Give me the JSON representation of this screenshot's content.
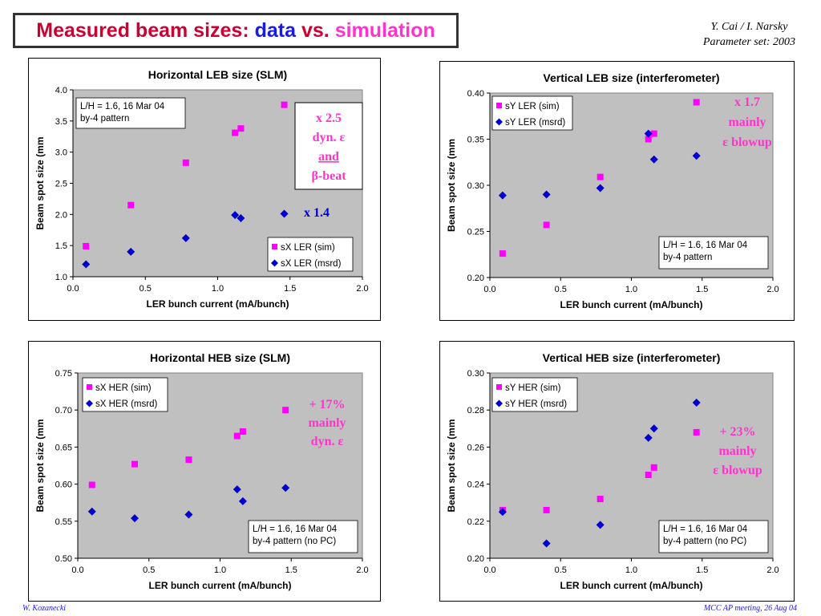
{
  "title": {
    "part1": "Measured beam sizes:",
    "part2": "data",
    "part3": "vs.",
    "part4": "simulation"
  },
  "authors": {
    "line1": "Y. Cai / I. Narsky",
    "line2": "Parameter set: 2003"
  },
  "footer": {
    "left": "W. Kozanecki",
    "right": "MCC AP meeting, 26 Aug 04"
  },
  "colors": {
    "sim": "#ff00ff",
    "msrd": "#0000cc",
    "plot_bg": "#c0c0c0",
    "annotation_pink": "#ff33cc",
    "annotation_blue": "#0000cc"
  },
  "chart_data": [
    {
      "type": "scatter",
      "title": "Horizontal LEB size (SLM)",
      "xlabel": "LER bunch current (mA/bunch)",
      "ylabel": "Beam spot size (mm",
      "xlim": [
        0,
        2
      ],
      "ylim": [
        1,
        4
      ],
      "xticks": [
        "0.0",
        "0.5",
        "1.0",
        "1.5",
        "2.0"
      ],
      "yticks": [
        "1.0",
        "1.5",
        "2.0",
        "2.5",
        "3.0",
        "3.5",
        "4.0"
      ],
      "series": [
        {
          "name": "sX LER (sim)",
          "marker": "square",
          "points": [
            [
              0.09,
              1.49
            ],
            [
              0.4,
              2.15
            ],
            [
              0.78,
              2.83
            ],
            [
              1.12,
              3.31
            ],
            [
              1.16,
              3.38
            ],
            [
              1.46,
              3.76
            ]
          ]
        },
        {
          "name": "sX LER (msrd)",
          "marker": "diamond",
          "points": [
            [
              0.09,
              1.2
            ],
            [
              0.4,
              1.4
            ],
            [
              0.78,
              1.62
            ],
            [
              1.12,
              1.99
            ],
            [
              1.16,
              1.94
            ],
            [
              1.46,
              2.01
            ]
          ]
        }
      ],
      "legend_position": "bottom-right",
      "note": [
        "L/H = 1.6, 16 Mar 04",
        "by-4 pattern"
      ],
      "note_position": "top-left",
      "annotations": [
        {
          "lines": [
            "x 2.5",
            "dyn. ε",
            "and",
            "β-beat"
          ],
          "color": "#ff33cc",
          "boxed": true
        },
        {
          "lines": [
            "x 1.4"
          ],
          "color": "#0000cc",
          "boxed": false
        }
      ]
    },
    {
      "type": "scatter",
      "title": "Vertical LEB size (interferometer)",
      "xlabel": "LER bunch current (mA/bunch)",
      "ylabel": "Beam spot size (mm",
      "xlim": [
        0,
        2
      ],
      "ylim": [
        0.2,
        0.4
      ],
      "xticks": [
        "0.0",
        "0.5",
        "1.0",
        "1.5",
        "2.0"
      ],
      "yticks": [
        "0.20",
        "0.25",
        "0.30",
        "0.35",
        "0.40"
      ],
      "series": [
        {
          "name": "sY LER (sim)",
          "marker": "square",
          "points": [
            [
              0.09,
              0.226
            ],
            [
              0.4,
              0.257
            ],
            [
              0.78,
              0.309
            ],
            [
              1.12,
              0.35
            ],
            [
              1.16,
              0.356
            ],
            [
              1.46,
              0.39
            ]
          ]
        },
        {
          "name": "sY LER (msrd)",
          "marker": "diamond",
          "points": [
            [
              0.09,
              0.289
            ],
            [
              0.4,
              0.29
            ],
            [
              0.78,
              0.297
            ],
            [
              1.12,
              0.356
            ],
            [
              1.16,
              0.328
            ],
            [
              1.46,
              0.332
            ]
          ]
        }
      ],
      "legend_position": "top-left",
      "note": [
        "L/H = 1.6, 16 Mar 04",
        "by-4 pattern"
      ],
      "note_position": "bottom-right",
      "annotations": [
        {
          "lines": [
            "x 1.7",
            "mainly",
            "ε blowup"
          ],
          "color": "#ff33cc",
          "boxed": false
        }
      ]
    },
    {
      "type": "scatter",
      "title": "Horizontal HEB size (SLM)",
      "xlabel": "LER bunch current (mA/bunch)",
      "ylabel": "Beam spot size (mm",
      "xlim": [
        0,
        2
      ],
      "ylim": [
        0.5,
        0.75
      ],
      "xticks": [
        "0.0",
        "0.5",
        "1.0",
        "1.5",
        "2.0"
      ],
      "yticks": [
        "0.50",
        "0.55",
        "0.60",
        "0.65",
        "0.70",
        "0.75"
      ],
      "series": [
        {
          "name": "sX HER (sim)",
          "marker": "square",
          "points": [
            [
              0.1,
              0.599
            ],
            [
              0.4,
              0.627
            ],
            [
              0.78,
              0.633
            ],
            [
              1.12,
              0.665
            ],
            [
              1.16,
              0.671
            ],
            [
              1.46,
              0.7
            ]
          ]
        },
        {
          "name": "sX HER (msrd)",
          "marker": "diamond",
          "points": [
            [
              0.1,
              0.563
            ],
            [
              0.4,
              0.554
            ],
            [
              0.78,
              0.559
            ],
            [
              1.12,
              0.593
            ],
            [
              1.16,
              0.577
            ],
            [
              1.46,
              0.595
            ]
          ]
        }
      ],
      "legend_position": "top-left",
      "note": [
        "L/H = 1.6, 16 Mar 04",
        "by-4 pattern (no PC)"
      ],
      "note_position": "bottom-right",
      "annotations": [
        {
          "lines": [
            "+ 17%",
            "mainly",
            "dyn. ε"
          ],
          "color": "#ff33cc",
          "boxed": false
        }
      ]
    },
    {
      "type": "scatter",
      "title": "Vertical HEB size (interferometer)",
      "xlabel": "LER bunch current (mA/bunch)",
      "ylabel": "Beam spot size (mm",
      "xlim": [
        0,
        2
      ],
      "ylim": [
        0.2,
        0.3
      ],
      "xticks": [
        "0.0",
        "0.5",
        "1.0",
        "1.5",
        "2.0"
      ],
      "yticks": [
        "0.20",
        "0.22",
        "0.24",
        "0.26",
        "0.28",
        "0.30"
      ],
      "series": [
        {
          "name": "sY HER (sim)",
          "marker": "square",
          "points": [
            [
              0.09,
              0.226
            ],
            [
              0.4,
              0.226
            ],
            [
              0.78,
              0.232
            ],
            [
              1.12,
              0.245
            ],
            [
              1.16,
              0.249
            ],
            [
              1.46,
              0.268
            ]
          ]
        },
        {
          "name": "sY HER (msrd)",
          "marker": "diamond",
          "points": [
            [
              0.09,
              0.225
            ],
            [
              0.4,
              0.208
            ],
            [
              0.78,
              0.218
            ],
            [
              1.12,
              0.265
            ],
            [
              1.16,
              0.27
            ],
            [
              1.46,
              0.284
            ]
          ]
        }
      ],
      "legend_position": "top-left",
      "note": [
        "L/H = 1.6, 16 Mar 04",
        "by-4 pattern (no PC)"
      ],
      "note_position": "bottom-right",
      "annotations": [
        {
          "lines": [
            "+ 23%",
            "mainly",
            "ε blowup"
          ],
          "color": "#ff33cc",
          "boxed": false
        }
      ]
    }
  ]
}
